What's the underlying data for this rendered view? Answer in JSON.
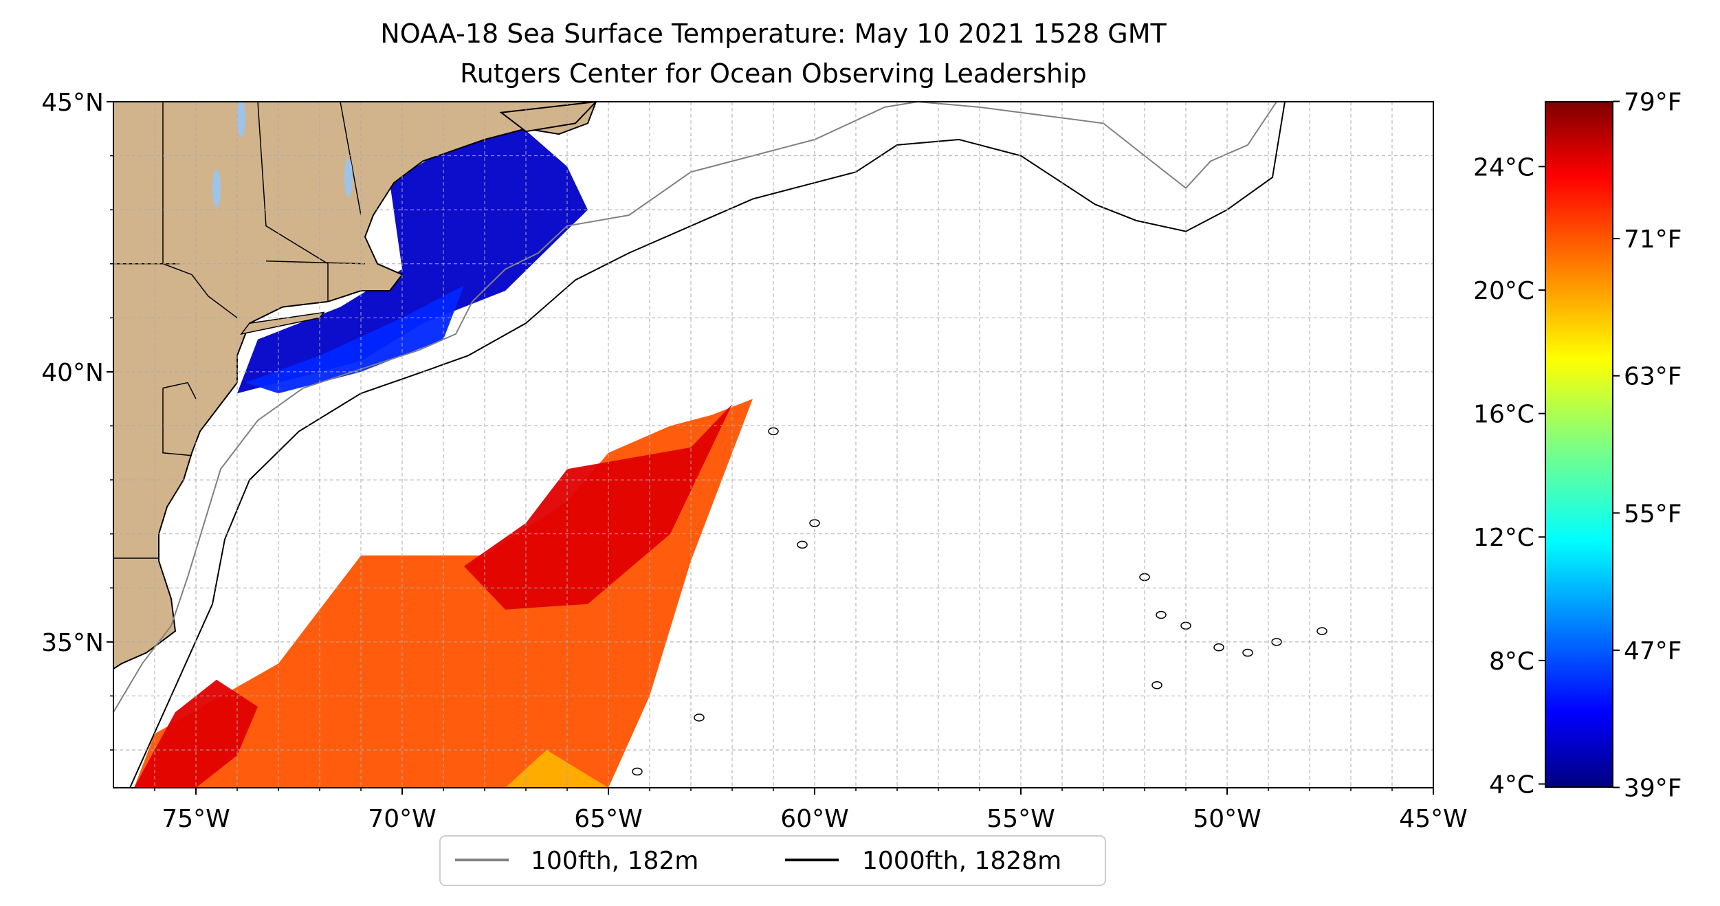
{
  "title": {
    "line1": "NOAA-18 Sea Surface Temperature: May 10 2021 1528 GMT",
    "line2": "Rutgers Center for Ocean Observing Leadership"
  },
  "map": {
    "lon_range": [
      -77,
      -45
    ],
    "lat_range": [
      32.3,
      45
    ],
    "lon_ticks": [
      {
        "value": -75,
        "label": "75°W"
      },
      {
        "value": -70,
        "label": "70°W"
      },
      {
        "value": -65,
        "label": "65°W"
      },
      {
        "value": -60,
        "label": "60°W"
      },
      {
        "value": -55,
        "label": "55°W"
      },
      {
        "value": -50,
        "label": "50°W"
      },
      {
        "value": -45,
        "label": "45°W"
      }
    ],
    "lat_ticks": [
      {
        "value": 35,
        "label": "35°N"
      },
      {
        "value": 40,
        "label": "40°N"
      },
      {
        "value": 45,
        "label": "45°N"
      }
    ],
    "grid": true,
    "colors": {
      "land": "#d2b48c",
      "lakes": "#9ec3e8",
      "shelf_contour": "#808080",
      "slope_contour": "#000000"
    }
  },
  "legend": {
    "placement": "bottom-center",
    "items": [
      {
        "label": "100fth, 182m",
        "color": "#808080"
      },
      {
        "label": "1000fth, 1828m",
        "color": "#000000"
      }
    ]
  },
  "colorbar": {
    "colormap": "jet",
    "range_c": [
      3.9,
      26.1
    ],
    "celsius_ticks": [
      {
        "value": 4,
        "label": "4°C"
      },
      {
        "value": 8,
        "label": "8°C"
      },
      {
        "value": 12,
        "label": "12°C"
      },
      {
        "value": 16,
        "label": "16°C"
      },
      {
        "value": 20,
        "label": "20°C"
      },
      {
        "value": 24,
        "label": "24°C"
      }
    ],
    "fahrenheit_ticks": [
      {
        "value": 39,
        "label": "39°F"
      },
      {
        "value": 47,
        "label": "47°F"
      },
      {
        "value": 55,
        "label": "55°F"
      },
      {
        "value": 63,
        "label": "63°F"
      },
      {
        "value": 71,
        "label": "71°F"
      },
      {
        "value": 79,
        "label": "79°F"
      }
    ]
  },
  "chart_data": {
    "type": "heatmap",
    "title": "NOAA-18 Sea Surface Temperature: May 10 2021 1528 GMT\nRutgers Center for Ocean Observing Leadership",
    "x_range": [
      -77,
      -45
    ],
    "y_range": [
      32.3,
      45
    ],
    "regions": [
      {
        "polygon": [
          [
            -74.0,
            39.6
          ],
          [
            -73.5,
            40.6
          ],
          [
            -71.5,
            41.2
          ],
          [
            -70.0,
            41.9
          ],
          [
            -70.3,
            43.5
          ],
          [
            -67.5,
            44.8
          ],
          [
            -66.0,
            43.8
          ],
          [
            -65.5,
            43.0
          ],
          [
            -67.5,
            41.5
          ],
          [
            -69.5,
            40.9
          ],
          [
            -71.0,
            40.2
          ],
          [
            -72.5,
            39.9
          ]
        ],
        "temperature_c": 5.5
      },
      {
        "polygon": [
          [
            -73.8,
            39.8
          ],
          [
            -72.0,
            40.3
          ],
          [
            -70.0,
            41.0
          ],
          [
            -68.5,
            41.6
          ],
          [
            -69.0,
            40.6
          ],
          [
            -71.0,
            40.0
          ],
          [
            -73.0,
            39.6
          ]
        ],
        "temperature_c": 7.5
      },
      {
        "polygon": [
          [
            -76.5,
            32.3
          ],
          [
            -76.0,
            33.3
          ],
          [
            -73.0,
            34.6
          ],
          [
            -71.0,
            36.6
          ],
          [
            -68.0,
            36.6
          ],
          [
            -66.0,
            37.6
          ],
          [
            -65.0,
            38.5
          ],
          [
            -63.5,
            39.0
          ],
          [
            -62.5,
            39.2
          ],
          [
            -61.5,
            39.5
          ],
          [
            -63.0,
            36.5
          ],
          [
            -64.0,
            34.0
          ],
          [
            -65.0,
            32.3
          ]
        ],
        "temperature_c": 21.5
      },
      {
        "polygon": [
          [
            -76.5,
            32.3
          ],
          [
            -75.5,
            33.7
          ],
          [
            -74.5,
            34.3
          ],
          [
            -73.5,
            33.8
          ],
          [
            -74.0,
            32.9
          ],
          [
            -75.0,
            32.3
          ]
        ],
        "temperature_c": 24.0
      },
      {
        "polygon": [
          [
            -68.5,
            36.4
          ],
          [
            -67.0,
            37.2
          ],
          [
            -66.0,
            38.2
          ],
          [
            -64.5,
            38.4
          ],
          [
            -63.0,
            38.6
          ],
          [
            -62.0,
            39.4
          ],
          [
            -63.5,
            37.0
          ],
          [
            -65.5,
            35.7
          ],
          [
            -67.5,
            35.6
          ]
        ],
        "temperature_c": 24.0
      },
      {
        "polygon": [
          [
            -67.5,
            32.3
          ],
          [
            -66.5,
            33.0
          ],
          [
            -65.0,
            32.3
          ]
        ],
        "temperature_c": 19.5
      }
    ]
  }
}
